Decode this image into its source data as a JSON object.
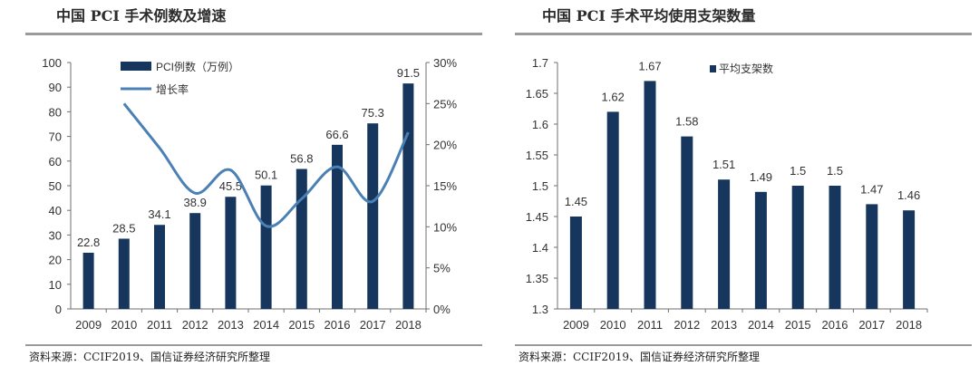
{
  "chart_data": [
    {
      "type": "bar",
      "title": "中国 PCI 手术例数及增速",
      "categories": [
        "2009",
        "2010",
        "2011",
        "2012",
        "2013",
        "2014",
        "2015",
        "2016",
        "2017",
        "2018"
      ],
      "series": [
        {
          "name": "PCI例数（万例）",
          "type": "bar",
          "axis": "left",
          "color": "#17365d",
          "values": [
            22.8,
            28.5,
            34.1,
            38.9,
            45.5,
            50.1,
            56.8,
            66.6,
            75.3,
            91.5
          ],
          "labels": [
            "22.8",
            "28.5",
            "34.1",
            "38.9",
            "45.5",
            "50.1",
            "56.8",
            "66.6",
            "75.3",
            "91.5"
          ]
        },
        {
          "name": "增长率",
          "type": "line",
          "axis": "right",
          "color": "#4a80b5",
          "values": [
            null,
            25.0,
            19.6,
            14.1,
            16.9,
            10.1,
            13.4,
            17.3,
            13.1,
            21.5
          ]
        }
      ],
      "ylim": [
        0,
        100
      ],
      "y_ticks": [
        "0",
        "10",
        "20",
        "30",
        "40",
        "50",
        "60",
        "70",
        "80",
        "90",
        "100"
      ],
      "y2lim": [
        0,
        30
      ],
      "y2_ticks": [
        "0%",
        "5%",
        "10%",
        "15%",
        "20%",
        "25%",
        "30%"
      ],
      "legend": "top-left",
      "source": "资料来源：CCIF2019、国信证券经济研究所整理"
    },
    {
      "type": "bar",
      "title": "中国 PCI 手术平均使用支架数量",
      "categories": [
        "2009",
        "2010",
        "2011",
        "2012",
        "2013",
        "2014",
        "2015",
        "2016",
        "2017",
        "2018"
      ],
      "series": [
        {
          "name": "平均支架数",
          "type": "bar",
          "color": "#17365d",
          "values": [
            1.45,
            1.62,
            1.67,
            1.58,
            1.51,
            1.49,
            1.5,
            1.5,
            1.47,
            1.46
          ],
          "labels": [
            "1.45",
            "1.62",
            "1.67",
            "1.58",
            "1.51",
            "1.49",
            "1.5",
            "1.5",
            "1.47",
            "1.46"
          ]
        }
      ],
      "ylim": [
        1.3,
        1.7
      ],
      "y_ticks": [
        "1.3",
        "1.35",
        "1.4",
        "1.45",
        "1.5",
        "1.55",
        "1.6",
        "1.65",
        "1.7"
      ],
      "legend": "top-left",
      "source": "资料来源：CCIF2019、国信证券经济研究所整理"
    }
  ]
}
